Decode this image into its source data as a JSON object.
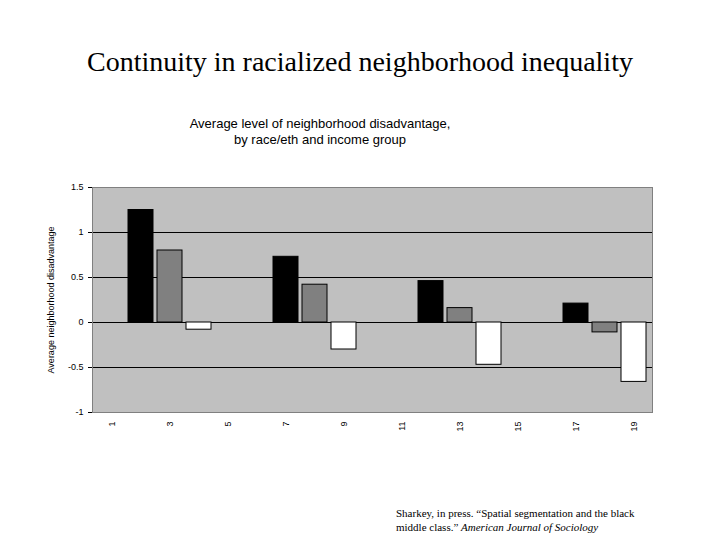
{
  "chart_data": {
    "type": "bar",
    "title": "Continuity in racialized neighborhood inequality",
    "subtitle": "Average level of neighborhood disadvantage,\nby race/eth and income group",
    "y_label": "Average neighborhood disadvantage",
    "caption": "Sharkey, in press. “Spatial segmentation and the black middle class.”",
    "caption_journal": "American Journal of Sociology",
    "categories": [
      "1",
      null,
      "3",
      null,
      "5",
      null,
      "7",
      null,
      "9",
      null,
      "11",
      null,
      "13",
      null,
      "15",
      null,
      "17",
      null,
      "19"
    ],
    "values": [
      null,
      1.25,
      0.8,
      -0.08,
      null,
      null,
      0.73,
      0.42,
      -0.3,
      null,
      null,
      0.46,
      0.16,
      -0.47,
      null,
      null,
      0.21,
      -0.11,
      -0.66
    ],
    "colors": [
      null,
      "#000000",
      "#808080",
      "#ffffff",
      null,
      null,
      "#000000",
      "#808080",
      "#ffffff",
      null,
      null,
      "#000000",
      "#808080",
      "#ffffff",
      null,
      null,
      "#000000",
      "#808080",
      "#ffffff"
    ],
    "ylim": [
      -1,
      1.5
    ],
    "yticks": [
      -1,
      -0.5,
      0,
      0.5,
      1,
      1.5
    ],
    "grid": true
  }
}
